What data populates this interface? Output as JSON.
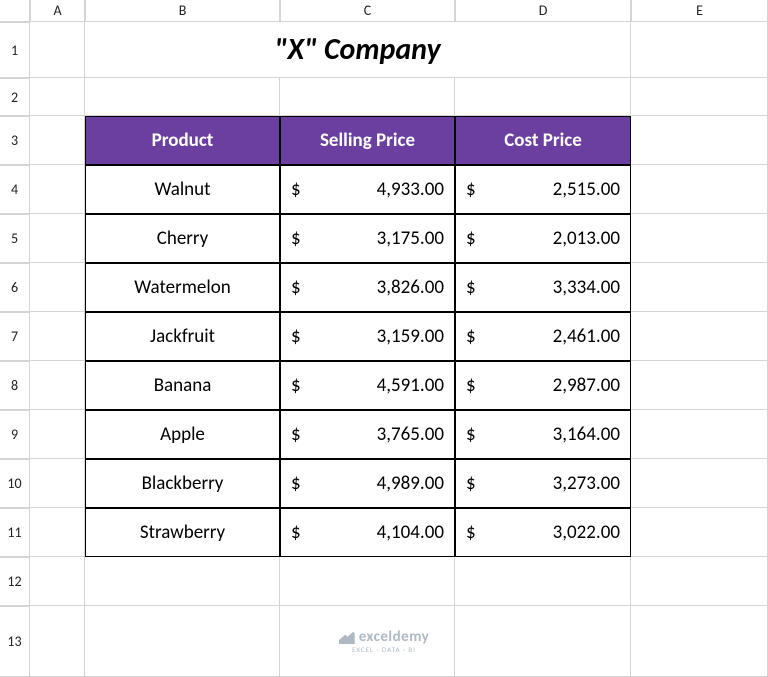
{
  "columns": [
    "A",
    "B",
    "C",
    "D",
    "E"
  ],
  "rows": [
    "1",
    "2",
    "3",
    "4",
    "5",
    "6",
    "7",
    "8",
    "9",
    "10",
    "11",
    "12",
    "13"
  ],
  "title": "\"X\" Company",
  "headers": {
    "product": "Product",
    "selling": "Selling Price",
    "cost": "Cost Price"
  },
  "currency": "$",
  "table": [
    {
      "product": "Walnut",
      "selling": "4,933.00",
      "cost": "2,515.00"
    },
    {
      "product": "Cherry",
      "selling": "3,175.00",
      "cost": "2,013.00"
    },
    {
      "product": "Watermelon",
      "selling": "3,826.00",
      "cost": "3,334.00"
    },
    {
      "product": "Jackfruit",
      "selling": "3,159.00",
      "cost": "2,461.00"
    },
    {
      "product": "Banana",
      "selling": "4,591.00",
      "cost": "2,987.00"
    },
    {
      "product": "Apple",
      "selling": "3,765.00",
      "cost": "3,164.00"
    },
    {
      "product": "Blackberry",
      "selling": "4,989.00",
      "cost": "3,273.00"
    },
    {
      "product": "Strawberry",
      "selling": "4,104.00",
      "cost": "3,022.00"
    }
  ],
  "watermark": {
    "text": "exceldemy",
    "sub": "EXCEL · DATA · BI"
  },
  "style": {
    "header_bg": "#6b3fa0",
    "header_fg": "#ffffff",
    "border_color": "#000000",
    "grid_color": "#d4d4d4",
    "title_fontsize": 30,
    "cell_fontsize": 19
  }
}
